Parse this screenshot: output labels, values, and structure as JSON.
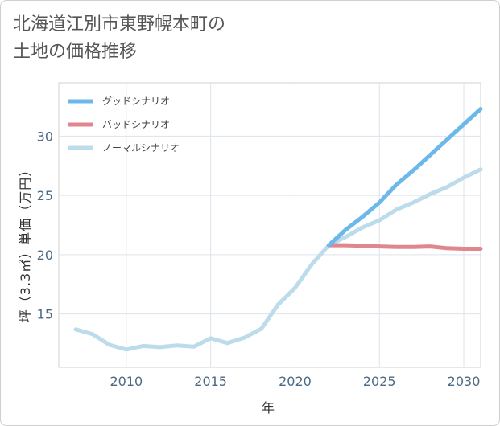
{
  "title_lines": [
    "北海道江別市東野幌本町の",
    "土地の価格推移"
  ],
  "chart_data": {
    "type": "line",
    "xlabel": "年",
    "ylabel": "坪（3.3㎡）単価（万円）",
    "xlim": [
      2006,
      2031
    ],
    "ylim": [
      10.5,
      34.5
    ],
    "xticks": [
      2010,
      2015,
      2020,
      2025,
      2030
    ],
    "yticks": [
      15,
      20,
      25,
      30
    ],
    "grid": true,
    "legend_position": "top-left",
    "series": [
      {
        "name": "グッドシナリオ",
        "color": "#6cb8ea",
        "x": [
          2022,
          2023,
          2024,
          2025,
          2026,
          2027,
          2028,
          2029,
          2030,
          2031
        ],
        "y": [
          20.8,
          22.1,
          23.2,
          24.4,
          25.9,
          27.1,
          28.4,
          29.7,
          31.0,
          32.3
        ]
      },
      {
        "name": "バッドシナリオ",
        "color": "#e0868f",
        "x": [
          2022,
          2023,
          2024,
          2025,
          2026,
          2027,
          2028,
          2029,
          2030,
          2031
        ],
        "y": [
          20.8,
          20.8,
          20.75,
          20.7,
          20.65,
          20.65,
          20.7,
          20.55,
          20.5,
          20.5
        ]
      },
      {
        "name": "ノーマルシナリオ",
        "color": "#bcdcec",
        "x": [
          2007,
          2008,
          2009,
          2010,
          2011,
          2012,
          2013,
          2014,
          2015,
          2016,
          2017,
          2018,
          2019,
          2020,
          2021,
          2022,
          2023,
          2024,
          2025,
          2026,
          2027,
          2028,
          2029,
          2030,
          2031
        ],
        "y": [
          13.7,
          13.3,
          12.4,
          12.0,
          12.3,
          12.2,
          12.35,
          12.25,
          12.95,
          12.55,
          13.0,
          13.75,
          15.8,
          17.2,
          19.2,
          20.8,
          21.5,
          22.3,
          22.9,
          23.8,
          24.4,
          25.1,
          25.7,
          26.5,
          27.2
        ]
      }
    ]
  }
}
